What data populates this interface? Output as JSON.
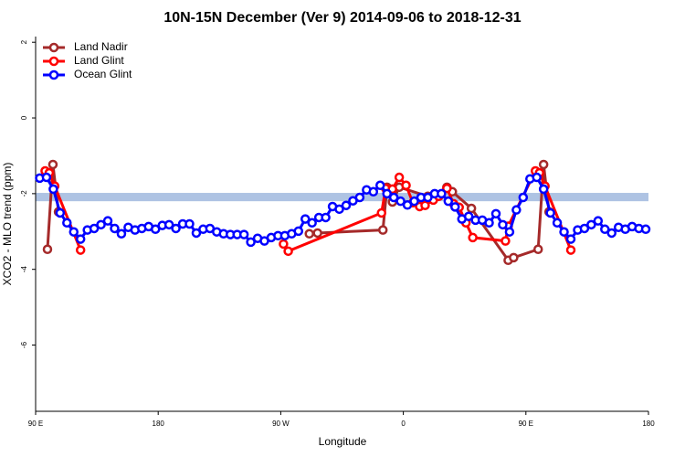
{
  "chart_data": {
    "type": "line",
    "title": "10N-15N December (Ver 9)   2014-09-06 to 2018-12-31",
    "x_label": "Longitude",
    "y_label": "XCO2 - MLO trend (ppm)",
    "xlim": [
      90,
      540
    ],
    "ylim": [
      -7.75,
      2.15
    ],
    "xticks": [
      {
        "value": 90,
        "label": "90 E"
      },
      {
        "value": 180,
        "label": "180"
      },
      {
        "value": 270,
        "label": "90 W"
      },
      {
        "value": 360,
        "label": "0"
      },
      {
        "value": 450,
        "label": "90 E"
      },
      {
        "value": 540,
        "label": "180"
      }
    ],
    "yticks": [
      2,
      0,
      -2,
      -4,
      -6
    ],
    "legend": "top-left",
    "reference_band": {
      "range": [
        -2.2,
        -1.98
      ],
      "color": "#aec3e3"
    },
    "series": [
      {
        "name": "Land Nadir",
        "color": "#a52a2a",
        "x": [
          98.7,
          102.7,
          106.8,
          286,
          291,
          297,
          345,
          348,
          352,
          357,
          378,
          382,
          392,
          396,
          410,
          437,
          441,
          459,
          463,
          467
        ],
        "values": [
          -3.47,
          -1.23,
          -2.48,
          null,
          -3.06,
          -3.04,
          -2.96,
          -1.83,
          -2.22,
          -1.83,
          -2.07,
          -2.07,
          -1.83,
          -1.95,
          -2.39,
          -3.76,
          -3.69,
          -3.47,
          -1.23,
          -2.48
        ]
      },
      {
        "name": "Land Glint",
        "color": "#ff0000",
        "x": [
          97,
          100,
          104,
          123,
          269,
          272,
          275.5,
          344,
          347,
          352,
          357,
          362,
          367,
          372,
          376,
          382,
          386,
          392,
          397,
          401,
          406,
          411,
          435,
          437,
          457,
          460,
          464,
          483
        ],
        "values": [
          -1.4,
          -1.45,
          -1.8,
          -3.49,
          null,
          -3.33,
          -3.52,
          -2.51,
          -1.86,
          -1.88,
          -1.57,
          -1.78,
          -2.24,
          -2.34,
          -2.31,
          -2.17,
          -2.07,
          -1.86,
          -2.27,
          -2.36,
          -2.77,
          -3.16,
          -3.25,
          -2.86,
          -1.4,
          -1.45,
          -1.8,
          -3.49
        ]
      },
      {
        "name": "Ocean Glint",
        "color": "#0000ff",
        "x": [
          93,
          98,
          103,
          108,
          113,
          118,
          123,
          128,
          133,
          138,
          143,
          148,
          153,
          158,
          163,
          168,
          173,
          178,
          183,
          188,
          193,
          198,
          203,
          208,
          213,
          218,
          223,
          228,
          233,
          238,
          243,
          248,
          253,
          258,
          263,
          268,
          273,
          278,
          283,
          288,
          293,
          298,
          303,
          308,
          313,
          318,
          323,
          328,
          333,
          338,
          343,
          348,
          353,
          358,
          363,
          368,
          373,
          378,
          383,
          388,
          393,
          398,
          403,
          408,
          413,
          418,
          423,
          428,
          433,
          438,
          443,
          448,
          453,
          458,
          463,
          468,
          473,
          478,
          483,
          488,
          493,
          498,
          503,
          508,
          513,
          518,
          523,
          528,
          533,
          538
        ],
        "values": [
          -1.59,
          -1.57,
          -1.88,
          -2.51,
          -2.77,
          -3.01,
          -3.2,
          -2.96,
          -2.92,
          -2.82,
          -2.72,
          -2.92,
          -3.06,
          -2.89,
          -2.96,
          -2.92,
          -2.87,
          -2.94,
          -2.84,
          -2.82,
          -2.92,
          -2.8,
          -2.8,
          -3.04,
          -2.94,
          -2.92,
          -3.01,
          -3.06,
          -3.08,
          -3.08,
          -3.08,
          -3.28,
          -3.18,
          -3.25,
          -3.16,
          -3.11,
          -3.11,
          -3.06,
          -2.99,
          -2.67,
          -2.77,
          -2.63,
          -2.63,
          -2.34,
          -2.41,
          -2.31,
          -2.19,
          -2.1,
          -1.9,
          -1.95,
          -1.78,
          -2.0,
          -2.1,
          -2.2,
          -2.3,
          -2.2,
          -2.1,
          -2.1,
          -2.0,
          -2.0,
          -2.2,
          -2.35,
          -2.67,
          -2.6,
          -2.7,
          -2.7,
          -2.77,
          -2.53,
          -2.82,
          -3.01,
          -2.43,
          -2.1,
          -1.61,
          -1.57,
          -1.88,
          -2.51,
          -2.77,
          -3.01,
          -3.2,
          -2.96,
          -2.92,
          -2.82,
          -2.72,
          -2.94,
          -3.04,
          -2.89,
          -2.94,
          -2.87,
          -2.92,
          -2.94
        ]
      }
    ]
  }
}
